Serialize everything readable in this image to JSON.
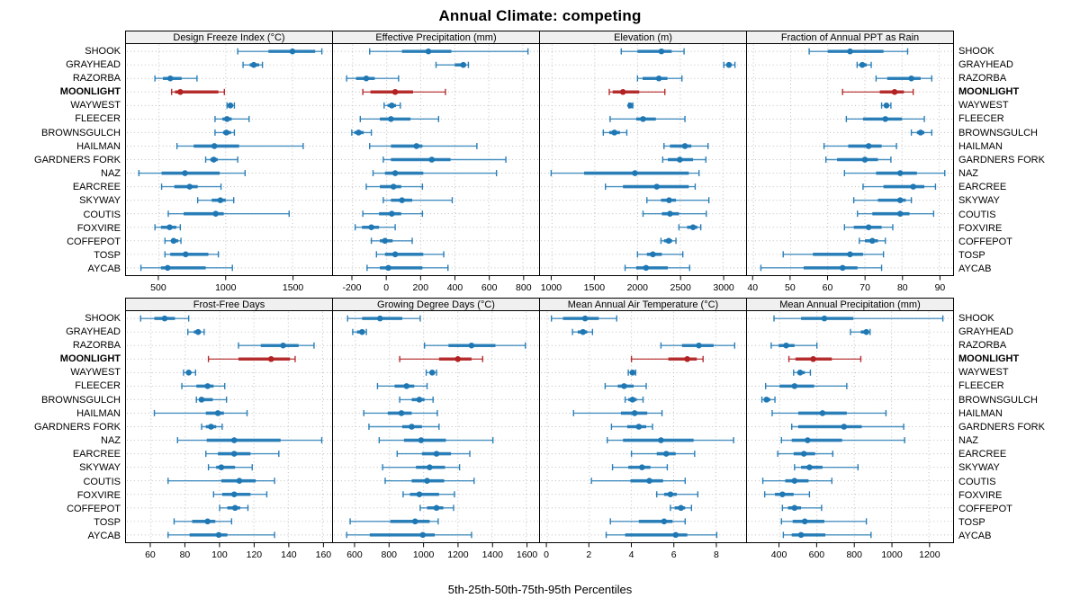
{
  "title": "Annual Climate: competing",
  "caption": "5th-25th-50th-75th-95th Percentiles",
  "colors": {
    "series": "#1f78b4",
    "highlight": "#b22222",
    "strip_bg": "#f0f0f0",
    "grid": "#bdbdbd",
    "panel_border": "#000000"
  },
  "sites": [
    "SHOOK",
    "GRAYHEAD",
    "RAZORBA",
    "MOONLIGHT",
    "WAYWEST",
    "FLEECER",
    "BROWNSGULCH",
    "HAILMAN",
    "GARDNERS FORK",
    "NAZ",
    "EARCREE",
    "SKYWAY",
    "COUTIS",
    "FOXVIRE",
    "COFFEPOT",
    "TOSP",
    "AYCAB"
  ],
  "highlight_site": "MOONLIGHT",
  "chart_data": {
    "type": "dotplot-intervals",
    "percentiles": [
      5,
      25,
      50,
      75,
      95
    ],
    "legend_note": "5th-25th-50th-75th-95th Percentiles",
    "grid": true,
    "panels": [
      {
        "title": "Design Freeze Index (°C)",
        "row": 0,
        "col": 0,
        "xlim": [
          260,
          1790
        ],
        "ticks": [
          500,
          1000,
          1500
        ],
        "values": [
          [
            1090,
            1320,
            1500,
            1670,
            1720
          ],
          [
            1130,
            1180,
            1210,
            1250,
            1275
          ],
          [
            470,
            530,
            585,
            670,
            785
          ],
          [
            595,
            620,
            660,
            945,
            990
          ],
          [
            1010,
            1025,
            1035,
            1050,
            1065
          ],
          [
            920,
            975,
            1010,
            1045,
            1175
          ],
          [
            920,
            980,
            1005,
            1040,
            1065
          ],
          [
            635,
            760,
            915,
            1100,
            1580
          ],
          [
            850,
            885,
            910,
            940,
            1090
          ],
          [
            350,
            520,
            695,
            955,
            1145
          ],
          [
            520,
            615,
            730,
            790,
            965
          ],
          [
            790,
            895,
            960,
            1000,
            1060
          ],
          [
            570,
            685,
            925,
            985,
            1475
          ],
          [
            470,
            515,
            580,
            630,
            660
          ],
          [
            545,
            590,
            610,
            645,
            665
          ],
          [
            545,
            585,
            700,
            870,
            945
          ],
          [
            365,
            515,
            565,
            850,
            1050
          ]
        ]
      },
      {
        "title": "Effective Precipitation (mm)",
        "row": 0,
        "col": 1,
        "xlim": [
          -310,
          890
        ],
        "ticks": [
          -200,
          0,
          200,
          400,
          600,
          800
        ],
        "values": [
          [
            -100,
            90,
            245,
            380,
            830
          ],
          [
            290,
            400,
            450,
            465,
            480
          ],
          [
            -235,
            -180,
            -120,
            -70,
            70
          ],
          [
            -140,
            -95,
            50,
            155,
            345
          ],
          [
            -15,
            5,
            30,
            55,
            80
          ],
          [
            -155,
            -40,
            25,
            140,
            305
          ],
          [
            -205,
            -190,
            -165,
            -135,
            -90
          ],
          [
            -100,
            25,
            175,
            210,
            530
          ],
          [
            -20,
            25,
            265,
            375,
            700
          ],
          [
            -80,
            -10,
            50,
            215,
            645
          ],
          [
            -120,
            -40,
            40,
            85,
            210
          ],
          [
            -20,
            25,
            90,
            150,
            385
          ],
          [
            -140,
            -45,
            30,
            85,
            210
          ],
          [
            -185,
            -145,
            -90,
            -45,
            50
          ],
          [
            -90,
            -40,
            -10,
            35,
            150
          ],
          [
            -60,
            -10,
            50,
            215,
            335
          ],
          [
            -115,
            -40,
            10,
            210,
            360
          ]
        ]
      },
      {
        "title": "Elevation (m)",
        "row": 0,
        "col": 2,
        "xlim": [
          870,
          3260
        ],
        "ticks": [
          1000,
          1500,
          2000,
          2500,
          3000
        ],
        "values": [
          [
            1810,
            2000,
            2280,
            2400,
            2545
          ],
          [
            3010,
            3040,
            3070,
            3100,
            3140
          ],
          [
            2000,
            2060,
            2250,
            2350,
            2520
          ],
          [
            1670,
            1710,
            1830,
            2020,
            2320
          ],
          [
            1900,
            1910,
            1915,
            1925,
            1945
          ],
          [
            1680,
            1985,
            2065,
            2215,
            2555
          ],
          [
            1600,
            1670,
            1730,
            1795,
            1875
          ],
          [
            2310,
            2380,
            2555,
            2630,
            2825
          ],
          [
            2295,
            2355,
            2495,
            2650,
            2800
          ],
          [
            990,
            1375,
            1970,
            2600,
            2720
          ],
          [
            1625,
            1830,
            2225,
            2600,
            2675
          ],
          [
            2110,
            2275,
            2370,
            2450,
            2835
          ],
          [
            2065,
            2285,
            2380,
            2485,
            2805
          ],
          [
            2485,
            2580,
            2650,
            2700,
            2740
          ],
          [
            2275,
            2310,
            2365,
            2405,
            2450
          ],
          [
            2000,
            2110,
            2180,
            2285,
            2530
          ],
          [
            1855,
            1985,
            2100,
            2355,
            2610
          ]
        ]
      },
      {
        "title": "Fraction of Annual PPT as Rain",
        "row": 0,
        "col": 3,
        "xlim": [
          38.5,
          93.5
        ],
        "ticks": [
          40,
          50,
          60,
          70,
          80,
          90
        ],
        "values": [
          [
            55,
            60,
            66,
            75,
            81.5
          ],
          [
            67.9,
            68.5,
            69.3,
            70.5,
            71.7
          ],
          [
            73,
            76,
            82.5,
            85,
            88
          ],
          [
            64,
            74,
            78,
            80.5,
            83
          ],
          [
            74.5,
            75.3,
            75.8,
            76.3,
            77
          ],
          [
            65,
            69.5,
            75.5,
            80,
            86
          ],
          [
            82.5,
            84,
            85,
            86,
            88
          ],
          [
            59,
            65.5,
            71,
            74.5,
            78.5
          ],
          [
            59.5,
            62.5,
            70,
            73.5,
            77
          ],
          [
            64.5,
            73,
            79.5,
            84,
            91.5
          ],
          [
            69.5,
            75,
            83,
            86,
            89
          ],
          [
            67,
            73.5,
            79.5,
            81,
            82.5
          ],
          [
            68,
            72,
            79.5,
            82,
            88.5
          ],
          [
            64.5,
            67,
            71,
            74.5,
            77.5
          ],
          [
            68.5,
            70,
            72,
            73.5,
            75.5
          ],
          [
            48,
            56,
            66,
            69.5,
            75
          ],
          [
            42,
            53.5,
            64,
            68,
            74.5
          ]
        ]
      },
      {
        "title": "Frost-Free Days",
        "row": 1,
        "col": 0,
        "xlim": [
          46,
          165
        ],
        "ticks": [
          60,
          80,
          100,
          120,
          140,
          160
        ],
        "values": [
          [
            54,
            62,
            68,
            74,
            82
          ],
          [
            81.5,
            85,
            87.5,
            89,
            91
          ],
          [
            111,
            124,
            137,
            146,
            155
          ],
          [
            93.5,
            111,
            130,
            141,
            144
          ],
          [
            79,
            81,
            82,
            83.5,
            86
          ],
          [
            78,
            86.5,
            93,
            96.5,
            103
          ],
          [
            86.5,
            88,
            89.5,
            96,
            104
          ],
          [
            62,
            92,
            99,
            102.5,
            116
          ],
          [
            89.5,
            92,
            95,
            98,
            101.5
          ],
          [
            75.5,
            92.5,
            108.5,
            135.5,
            159.5
          ],
          [
            92,
            99,
            108.5,
            118,
            134.5
          ],
          [
            93.5,
            98,
            101,
            109,
            119
          ],
          [
            70,
            101,
            111.5,
            121,
            132
          ],
          [
            96.5,
            101.5,
            108.5,
            118,
            127.5
          ],
          [
            100,
            104.5,
            109,
            112,
            116.5
          ],
          [
            73.5,
            84,
            93,
            97.5,
            107
          ],
          [
            70,
            82.5,
            99.5,
            104.5,
            132
          ]
        ]
      },
      {
        "title": "Growing Degree Days (°C)",
        "row": 1,
        "col": 1,
        "xlim": [
          475,
          1670
        ],
        "ticks": [
          600,
          800,
          1000,
          1200,
          1400,
          1600
        ],
        "values": [
          [
            555,
            640,
            745,
            875,
            980
          ],
          [
            585,
            610,
            640,
            655,
            665
          ],
          [
            1005,
            1145,
            1280,
            1420,
            1595
          ],
          [
            860,
            1090,
            1200,
            1280,
            1345
          ],
          [
            1015,
            1040,
            1050,
            1062,
            1075
          ],
          [
            730,
            830,
            900,
            945,
            1020
          ],
          [
            860,
            930,
            975,
            1005,
            1055
          ],
          [
            650,
            790,
            870,
            930,
            1080
          ],
          [
            680,
            875,
            930,
            990,
            1090
          ],
          [
            740,
            885,
            985,
            1130,
            1405
          ],
          [
            845,
            990,
            1075,
            1160,
            1270
          ],
          [
            760,
            955,
            1035,
            1125,
            1210
          ],
          [
            775,
            930,
            1020,
            1120,
            1295
          ],
          [
            880,
            920,
            975,
            1090,
            1180
          ],
          [
            980,
            1020,
            1075,
            1115,
            1175
          ],
          [
            570,
            805,
            950,
            1035,
            1085
          ],
          [
            550,
            685,
            995,
            1065,
            1280
          ]
        ]
      },
      {
        "title": "Mean Annual Air Temperature (°C)",
        "row": 1,
        "col": 2,
        "xlim": [
          -0.3,
          9.4
        ],
        "ticks": [
          0,
          2,
          4,
          6,
          8
        ],
        "values": [
          [
            0.2,
            0.75,
            1.8,
            2.45,
            3.3
          ],
          [
            1.2,
            1.45,
            1.7,
            1.9,
            2.15
          ],
          [
            5.4,
            6.4,
            7.2,
            7.9,
            8.9
          ],
          [
            4.0,
            5.75,
            6.65,
            7.1,
            7.4
          ],
          [
            3.85,
            3.95,
            4.05,
            4.1,
            4.2
          ],
          [
            2.75,
            3.35,
            3.65,
            4.1,
            4.7
          ],
          [
            3.7,
            3.85,
            4.05,
            4.25,
            4.55
          ],
          [
            1.25,
            3.5,
            4.15,
            4.75,
            5.45
          ],
          [
            3.05,
            3.8,
            4.35,
            4.7,
            5.0
          ],
          [
            2.85,
            3.6,
            5.4,
            6.95,
            8.85
          ],
          [
            4.0,
            5.2,
            5.65,
            6.1,
            7.0
          ],
          [
            3.1,
            3.85,
            4.5,
            4.9,
            5.7
          ],
          [
            2.1,
            3.95,
            4.85,
            5.5,
            6.55
          ],
          [
            5.2,
            5.55,
            5.85,
            6.15,
            7.15
          ],
          [
            5.85,
            6.05,
            6.35,
            6.55,
            6.85
          ],
          [
            3.0,
            4.35,
            5.55,
            5.95,
            6.55
          ],
          [
            2.8,
            3.7,
            6.1,
            6.65,
            8.05
          ]
        ]
      },
      {
        "title": "Mean Annual Precipitation (mm)",
        "row": 1,
        "col": 3,
        "xlim": [
          230,
          1325
        ],
        "ticks": [
          400,
          600,
          800,
          1000,
          1200
        ],
        "values": [
          [
            370,
            515,
            640,
            795,
            1275
          ],
          [
            780,
            835,
            865,
            875,
            885
          ],
          [
            355,
            395,
            435,
            480,
            600
          ],
          [
            450,
            485,
            580,
            680,
            835
          ],
          [
            475,
            495,
            510,
            535,
            565
          ],
          [
            325,
            400,
            480,
            585,
            760
          ],
          [
            305,
            315,
            330,
            350,
            375
          ],
          [
            360,
            500,
            630,
            760,
            970
          ],
          [
            465,
            500,
            745,
            840,
            1065
          ],
          [
            410,
            465,
            550,
            735,
            1070
          ],
          [
            390,
            475,
            530,
            590,
            685
          ],
          [
            480,
            515,
            560,
            630,
            820
          ],
          [
            310,
            430,
            480,
            555,
            680
          ],
          [
            320,
            375,
            415,
            475,
            560
          ],
          [
            415,
            445,
            480,
            515,
            625
          ],
          [
            410,
            470,
            535,
            640,
            865
          ],
          [
            420,
            465,
            515,
            645,
            890
          ]
        ]
      }
    ]
  }
}
